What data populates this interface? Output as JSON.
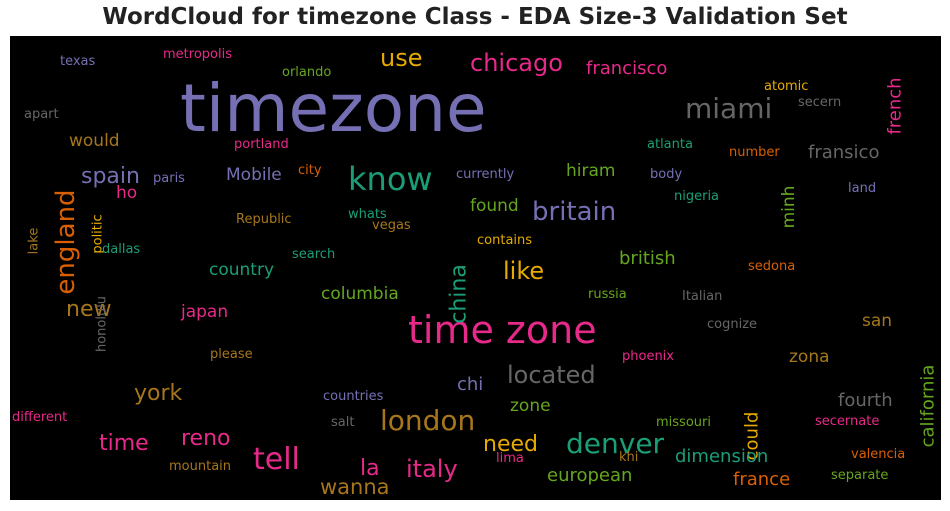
{
  "chart_data": {
    "type": "wordcloud",
    "title": "WordCloud for timezone Class - EDA Size-3 Validation Set",
    "background": "#000000",
    "palette": {
      "colormap": "Dark2",
      "colors": [
        "#1b9e77",
        "#d95f02",
        "#7570b3",
        "#e7298a",
        "#66a61e",
        "#e6ab02",
        "#a6761d",
        "#666666"
      ]
    },
    "words": [
      {
        "text": "timezone",
        "weight": 1.0,
        "color": "#7570b3",
        "rotated": false
      },
      {
        "text": "time zone",
        "weight": 0.64,
        "color": "#e7298a",
        "rotated": false
      },
      {
        "text": "know",
        "weight": 0.46,
        "color": "#1b9e77",
        "rotated": false
      },
      {
        "text": "tell",
        "weight": 0.4,
        "color": "#e7298a",
        "rotated": false
      },
      {
        "text": "miami",
        "weight": 0.38,
        "color": "#666666",
        "rotated": false
      },
      {
        "text": "london",
        "weight": 0.38,
        "color": "#a6761d",
        "rotated": false
      },
      {
        "text": "denver",
        "weight": 0.38,
        "color": "#1b9e77",
        "rotated": false
      },
      {
        "text": "england",
        "weight": 0.36,
        "color": "#d95f02",
        "rotated": true
      },
      {
        "text": "britain",
        "weight": 0.35,
        "color": "#7570b3",
        "rotated": false
      },
      {
        "text": "italy",
        "weight": 0.34,
        "color": "#e7298a",
        "rotated": false
      },
      {
        "text": "like",
        "weight": 0.33,
        "color": "#e6ab02",
        "rotated": false
      },
      {
        "text": "located",
        "weight": 0.33,
        "color": "#666666",
        "rotated": false
      },
      {
        "text": "use",
        "weight": 0.32,
        "color": "#e6ab02",
        "rotated": false
      },
      {
        "text": "chicago",
        "weight": 0.32,
        "color": "#e7298a",
        "rotated": false
      },
      {
        "text": "spain",
        "weight": 0.31,
        "color": "#7570b3",
        "rotated": false
      },
      {
        "text": "time",
        "weight": 0.31,
        "color": "#e7298a",
        "rotated": false
      },
      {
        "text": "reno",
        "weight": 0.31,
        "color": "#e7298a",
        "rotated": false
      },
      {
        "text": "la",
        "weight": 0.31,
        "color": "#e7298a",
        "rotated": false
      },
      {
        "text": "china",
        "weight": 0.3,
        "color": "#1b9e77",
        "rotated": true
      },
      {
        "text": "new",
        "weight": 0.28,
        "color": "#a6761d",
        "rotated": false
      },
      {
        "text": "york",
        "weight": 0.28,
        "color": "#a6761d",
        "rotated": false
      },
      {
        "text": "need",
        "weight": 0.28,
        "color": "#e6ab02",
        "rotated": false
      },
      {
        "text": "wanna",
        "weight": 0.27,
        "color": "#a6761d",
        "rotated": false
      },
      {
        "text": "francisco",
        "weight": 0.23,
        "color": "#e7298a",
        "rotated": false
      },
      {
        "text": "fransico",
        "weight": 0.23,
        "color": "#666666",
        "rotated": false
      },
      {
        "text": "french",
        "weight": 0.23,
        "color": "#e7298a",
        "rotated": true
      },
      {
        "text": "could",
        "weight": 0.23,
        "color": "#e6ab02",
        "rotated": true
      },
      {
        "text": "california",
        "weight": 0.23,
        "color": "#66a61e",
        "rotated": true
      },
      {
        "text": "fourth",
        "weight": 0.23,
        "color": "#666666",
        "rotated": false
      },
      {
        "text": "france",
        "weight": 0.23,
        "color": "#d95f02",
        "rotated": false
      },
      {
        "text": "british",
        "weight": 0.22,
        "color": "#66a61e",
        "rotated": false
      },
      {
        "text": "dimension",
        "weight": 0.22,
        "color": "#1b9e77",
        "rotated": false
      },
      {
        "text": "european",
        "weight": 0.22,
        "color": "#66a61e",
        "rotated": false
      },
      {
        "text": "chi",
        "weight": 0.22,
        "color": "#7570b3",
        "rotated": false
      },
      {
        "text": "would",
        "weight": 0.21,
        "color": "#a6761d",
        "rotated": false
      },
      {
        "text": "hiram",
        "weight": 0.21,
        "color": "#66a61e",
        "rotated": false
      },
      {
        "text": "found",
        "weight": 0.21,
        "color": "#66a61e",
        "rotated": false
      },
      {
        "text": "Mobile",
        "weight": 0.21,
        "color": "#7570b3",
        "rotated": false
      },
      {
        "text": "minh",
        "weight": 0.21,
        "color": "#66a61e",
        "rotated": true
      },
      {
        "text": "country",
        "weight": 0.21,
        "color": "#1b9e77",
        "rotated": false
      },
      {
        "text": "columbia",
        "weight": 0.21,
        "color": "#66a61e",
        "rotated": false
      },
      {
        "text": "japan",
        "weight": 0.21,
        "color": "#e7298a",
        "rotated": false
      },
      {
        "text": "san",
        "weight": 0.21,
        "color": "#a6761d",
        "rotated": false
      },
      {
        "text": "zona",
        "weight": 0.21,
        "color": "#a6761d",
        "rotated": false
      },
      {
        "text": "ho",
        "weight": 0.2,
        "color": "#e7298a",
        "rotated": false
      },
      {
        "text": "zone",
        "weight": 0.2,
        "color": "#66a61e",
        "rotated": false
      },
      {
        "text": "texas",
        "weight": 0.14,
        "color": "#7570b3",
        "rotated": false
      },
      {
        "text": "metropolis",
        "weight": 0.14,
        "color": "#e7298a",
        "rotated": false
      },
      {
        "text": "orlando",
        "weight": 0.14,
        "color": "#66a61e",
        "rotated": false
      },
      {
        "text": "atomic",
        "weight": 0.14,
        "color": "#e6ab02",
        "rotated": false
      },
      {
        "text": "secern",
        "weight": 0.14,
        "color": "#666666",
        "rotated": false
      },
      {
        "text": "apart",
        "weight": 0.14,
        "color": "#666666",
        "rotated": false
      },
      {
        "text": "portland",
        "weight": 0.14,
        "color": "#e7298a",
        "rotated": false
      },
      {
        "text": "atlanta",
        "weight": 0.14,
        "color": "#1b9e77",
        "rotated": false
      },
      {
        "text": "number",
        "weight": 0.14,
        "color": "#d95f02",
        "rotated": false
      },
      {
        "text": "paris",
        "weight": 0.14,
        "color": "#7570b3",
        "rotated": false
      },
      {
        "text": "city",
        "weight": 0.14,
        "color": "#d95f02",
        "rotated": false
      },
      {
        "text": "currently",
        "weight": 0.14,
        "color": "#7570b3",
        "rotated": false
      },
      {
        "text": "body",
        "weight": 0.14,
        "color": "#7570b3",
        "rotated": false
      },
      {
        "text": "land",
        "weight": 0.14,
        "color": "#7570b3",
        "rotated": false
      },
      {
        "text": "nigeria",
        "weight": 0.14,
        "color": "#1b9e77",
        "rotated": false
      },
      {
        "text": "Republic",
        "weight": 0.14,
        "color": "#a6761d",
        "rotated": false
      },
      {
        "text": "whats",
        "weight": 0.14,
        "color": "#1b9e77",
        "rotated": false
      },
      {
        "text": "vegas",
        "weight": 0.14,
        "color": "#a6761d",
        "rotated": false
      },
      {
        "text": "politic",
        "weight": 0.14,
        "color": "#e6ab02",
        "rotated": true
      },
      {
        "text": "lake",
        "weight": 0.14,
        "color": "#a6761d",
        "rotated": true
      },
      {
        "text": "dallas",
        "weight": 0.14,
        "color": "#1b9e77",
        "rotated": false
      },
      {
        "text": "search",
        "weight": 0.14,
        "color": "#1b9e77",
        "rotated": false
      },
      {
        "text": "contains",
        "weight": 0.14,
        "color": "#e6ab02",
        "rotated": false
      },
      {
        "text": "sedona",
        "weight": 0.14,
        "color": "#d95f02",
        "rotated": false
      },
      {
        "text": "russia",
        "weight": 0.14,
        "color": "#66a61e",
        "rotated": false
      },
      {
        "text": "Italian",
        "weight": 0.14,
        "color": "#666666",
        "rotated": false
      },
      {
        "text": "cognize",
        "weight": 0.14,
        "color": "#666666",
        "rotated": false
      },
      {
        "text": "honolulu",
        "weight": 0.14,
        "color": "#666666",
        "rotated": true
      },
      {
        "text": "please",
        "weight": 0.14,
        "color": "#a6761d",
        "rotated": false
      },
      {
        "text": "phoenix",
        "weight": 0.14,
        "color": "#e7298a",
        "rotated": false
      },
      {
        "text": "countries",
        "weight": 0.14,
        "color": "#7570b3",
        "rotated": false
      },
      {
        "text": "different",
        "weight": 0.14,
        "color": "#e7298a",
        "rotated": false
      },
      {
        "text": "salt",
        "weight": 0.14,
        "color": "#666666",
        "rotated": false
      },
      {
        "text": "missouri",
        "weight": 0.14,
        "color": "#66a61e",
        "rotated": false
      },
      {
        "text": "secernate",
        "weight": 0.14,
        "color": "#e7298a",
        "rotated": false
      },
      {
        "text": "lima",
        "weight": 0.14,
        "color": "#e7298a",
        "rotated": false
      },
      {
        "text": "khi",
        "weight": 0.14,
        "color": "#a6761d",
        "rotated": false
      },
      {
        "text": "mountain",
        "weight": 0.14,
        "color": "#a6761d",
        "rotated": false
      },
      {
        "text": "valencia",
        "weight": 0.14,
        "color": "#d95f02",
        "rotated": false
      },
      {
        "text": "separate",
        "weight": 0.14,
        "color": "#66a61e",
        "rotated": false
      }
    ]
  }
}
